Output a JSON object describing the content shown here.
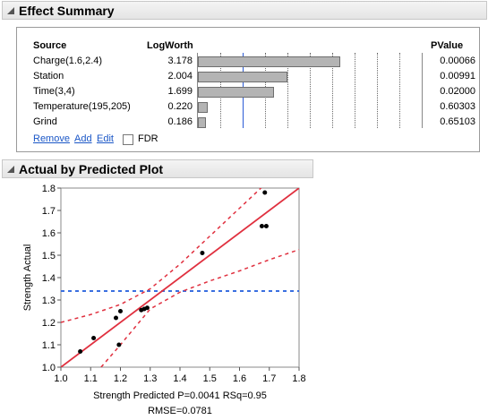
{
  "effect_summary": {
    "title": "Effect Summary",
    "columns": {
      "source": "Source",
      "logworth": "LogWorth",
      "pvalue": "PValue"
    },
    "rows": [
      {
        "source": "Charge(1.6,2.4)",
        "logworth_label": "3.178",
        "logworth": 3.178,
        "pvalue": "0.00066"
      },
      {
        "source": "Station",
        "logworth_label": "2.004",
        "logworth": 2.004,
        "pvalue": "0.00991"
      },
      {
        "source": "Time(3,4)",
        "logworth_label": "1.699",
        "logworth": 1.699,
        "pvalue": "0.02000"
      },
      {
        "source": "Temperature(195,205)",
        "logworth_label": "0.220",
        "logworth": 0.22,
        "pvalue": "0.60303"
      },
      {
        "source": "Grind",
        "logworth_label": "0.186",
        "logworth": 0.186,
        "pvalue": "0.65103"
      }
    ],
    "actions": {
      "remove": "Remove",
      "add": "Add",
      "edit": "Edit"
    },
    "fdr_label": "FDR",
    "fdr_checked": false
  },
  "actual_predicted": {
    "title": "Actual by Predicted Plot",
    "footer": "Strength Predicted P=0.0041 RSq=0.95",
    "rmse": "RMSE=0.0781"
  },
  "colors": {
    "fit_line": "#e0303f",
    "mean_line": "#3a6fe0",
    "points": "#000000",
    "logworth_ref": "#2b5bd6"
  },
  "chart_data": {
    "type": "scatter",
    "xlabel": "Strength Predicted P=0.0041 RSq=0.95",
    "ylabel": "Strength Actual",
    "xlim": [
      1.0,
      1.8
    ],
    "ylim": [
      1.0,
      1.8
    ],
    "x_ticks": [
      "1.0",
      "1.1",
      "1.2",
      "1.3",
      "1.4",
      "1.5",
      "1.6",
      "1.7",
      "1.8"
    ],
    "y_ticks": [
      "1.0",
      "1.1",
      "1.2",
      "1.3",
      "1.4",
      "1.5",
      "1.6",
      "1.7",
      "1.8"
    ],
    "mean_y": 1.34,
    "grid": false,
    "points": [
      {
        "x": 1.065,
        "y": 1.07
      },
      {
        "x": 1.11,
        "y": 1.13
      },
      {
        "x": 1.185,
        "y": 1.22
      },
      {
        "x": 1.195,
        "y": 1.1
      },
      {
        "x": 1.2,
        "y": 1.25
      },
      {
        "x": 1.27,
        "y": 1.255
      },
      {
        "x": 1.28,
        "y": 1.26
      },
      {
        "x": 1.29,
        "y": 1.265
      },
      {
        "x": 1.475,
        "y": 1.51
      },
      {
        "x": 1.675,
        "y": 1.63
      },
      {
        "x": 1.69,
        "y": 1.63
      },
      {
        "x": 1.685,
        "y": 1.78
      }
    ],
    "fit_line": [
      {
        "x": 1.0,
        "y": 1.0
      },
      {
        "x": 1.8,
        "y": 1.8
      }
    ],
    "confidence_upper": [
      {
        "x": 1.0,
        "y": 1.2
      },
      {
        "x": 1.1,
        "y": 1.235
      },
      {
        "x": 1.2,
        "y": 1.28
      },
      {
        "x": 1.3,
        "y": 1.35
      },
      {
        "x": 1.4,
        "y": 1.46
      },
      {
        "x": 1.5,
        "y": 1.585
      },
      {
        "x": 1.6,
        "y": 1.71
      },
      {
        "x": 1.7,
        "y": 1.835
      }
    ],
    "confidence_lower": [
      {
        "x": 1.135,
        "y": 1.0
      },
      {
        "x": 1.2,
        "y": 1.1
      },
      {
        "x": 1.3,
        "y": 1.26
      },
      {
        "x": 1.4,
        "y": 1.335
      },
      {
        "x": 1.5,
        "y": 1.385
      },
      {
        "x": 1.6,
        "y": 1.43
      },
      {
        "x": 1.7,
        "y": 1.48
      },
      {
        "x": 1.8,
        "y": 1.525
      }
    ]
  }
}
